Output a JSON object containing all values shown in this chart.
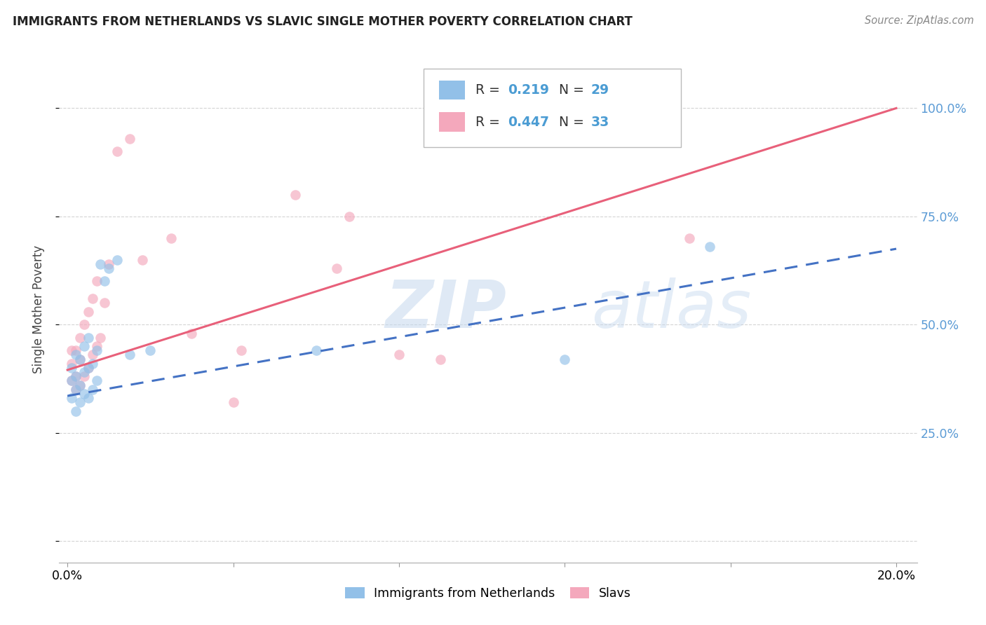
{
  "title": "IMMIGRANTS FROM NETHERLANDS VS SLAVIC SINGLE MOTHER POVERTY CORRELATION CHART",
  "source": "Source: ZipAtlas.com",
  "ylabel_label": "Single Mother Poverty",
  "x_ticks": [
    0.0,
    0.04,
    0.08,
    0.12,
    0.16,
    0.2
  ],
  "x_tick_labels": [
    "0.0%",
    "",
    "",
    "",
    "",
    "20.0%"
  ],
  "y_ticks": [
    0.0,
    0.25,
    0.5,
    0.75,
    1.0
  ],
  "y_tick_labels": [
    "",
    "25.0%",
    "50.0%",
    "75.0%",
    "100.0%"
  ],
  "xlim": [
    -0.002,
    0.205
  ],
  "ylim": [
    -0.05,
    1.12
  ],
  "watermark": "ZIPatlas",
  "blue_color": "#92C0E8",
  "pink_color": "#F4A8BC",
  "blue_line_color": "#4472C4",
  "pink_line_color": "#E8607A",
  "background_color": "#FFFFFF",
  "grid_color": "#D0D0D0",
  "scatter_alpha": 0.65,
  "scatter_size": 110,
  "netherlands_x": [
    0.001,
    0.001,
    0.001,
    0.002,
    0.002,
    0.002,
    0.002,
    0.003,
    0.003,
    0.003,
    0.004,
    0.004,
    0.004,
    0.005,
    0.005,
    0.005,
    0.006,
    0.006,
    0.007,
    0.007,
    0.008,
    0.009,
    0.01,
    0.012,
    0.015,
    0.02,
    0.06,
    0.12,
    0.155
  ],
  "netherlands_y": [
    0.33,
    0.37,
    0.4,
    0.3,
    0.35,
    0.38,
    0.43,
    0.32,
    0.36,
    0.42,
    0.34,
    0.39,
    0.45,
    0.33,
    0.4,
    0.47,
    0.35,
    0.41,
    0.37,
    0.44,
    0.64,
    0.6,
    0.63,
    0.65,
    0.43,
    0.44,
    0.44,
    0.42,
    0.68
  ],
  "slavic_x": [
    0.001,
    0.001,
    0.001,
    0.002,
    0.002,
    0.002,
    0.003,
    0.003,
    0.003,
    0.004,
    0.004,
    0.005,
    0.005,
    0.006,
    0.006,
    0.007,
    0.007,
    0.008,
    0.009,
    0.01,
    0.012,
    0.015,
    0.018,
    0.025,
    0.03,
    0.04,
    0.042,
    0.055,
    0.065,
    0.068,
    0.08,
    0.09,
    0.15
  ],
  "slavic_y": [
    0.37,
    0.41,
    0.44,
    0.35,
    0.38,
    0.44,
    0.36,
    0.42,
    0.47,
    0.38,
    0.5,
    0.4,
    0.53,
    0.43,
    0.56,
    0.45,
    0.6,
    0.47,
    0.55,
    0.64,
    0.9,
    0.93,
    0.65,
    0.7,
    0.48,
    0.32,
    0.44,
    0.8,
    0.63,
    0.75,
    0.43,
    0.42,
    0.7
  ],
  "blue_line_x": [
    0.0,
    0.2
  ],
  "blue_line_y": [
    0.335,
    0.675
  ],
  "pink_line_x": [
    0.0,
    0.2
  ],
  "pink_line_y": [
    0.395,
    1.0
  ]
}
